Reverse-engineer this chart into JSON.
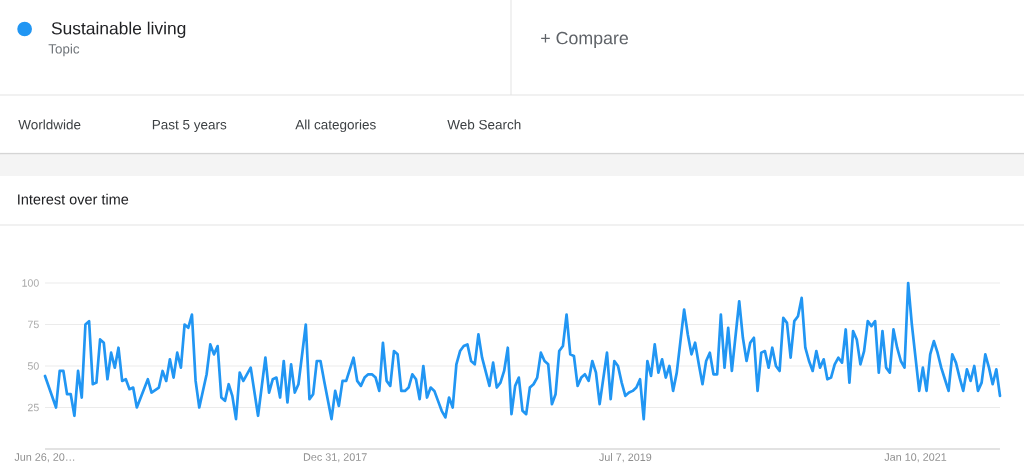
{
  "chart_data": {
    "type": "line",
    "title": "Interest over time",
    "annotations": [
      "Topic",
      "+ Compare",
      "Worldwide",
      "Past 5 years",
      "All categories",
      "Web Search"
    ],
    "x": [
      "2016-06-26",
      "2016-07-17",
      "2016-07-24",
      "2016-07-31",
      "2016-08-07",
      "2016-08-14",
      "2016-08-21",
      "2016-08-28",
      "2016-09-04",
      "2016-09-11",
      "2016-09-18",
      "2016-09-25",
      "2016-10-02",
      "2016-10-09",
      "2016-10-16",
      "2016-10-23",
      "2016-10-30",
      "2016-11-06",
      "2016-11-13",
      "2016-11-20",
      "2016-11-27",
      "2016-12-04",
      "2016-12-11",
      "2016-12-18",
      "2017-01-08",
      "2017-01-15",
      "2017-01-29",
      "2017-02-05",
      "2017-02-12",
      "2017-02-19",
      "2017-02-26",
      "2017-03-05",
      "2017-03-12",
      "2017-03-19",
      "2017-03-26",
      "2017-04-02",
      "2017-04-09",
      "2017-04-16",
      "2017-04-30",
      "2017-05-07",
      "2017-05-14",
      "2017-05-21",
      "2017-05-28",
      "2017-06-04",
      "2017-06-11",
      "2017-06-18",
      "2017-06-25",
      "2017-07-02",
      "2017-07-09",
      "2017-07-23",
      "2017-08-06",
      "2017-08-20",
      "2017-08-27",
      "2017-09-03",
      "2017-09-10",
      "2017-09-17",
      "2017-09-24",
      "2017-10-01",
      "2017-10-08",
      "2017-10-15",
      "2017-10-22",
      "2017-11-05",
      "2017-11-12",
      "2017-11-19",
      "2017-11-26",
      "2017-12-03",
      "2017-12-10",
      "2017-12-24",
      "2017-12-31",
      "2018-01-07",
      "2018-01-14",
      "2018-01-21",
      "2018-02-04",
      "2018-02-11",
      "2018-02-18",
      "2018-02-25",
      "2018-03-04",
      "2018-03-11",
      "2018-03-18",
      "2018-03-25",
      "2018-04-01",
      "2018-04-08",
      "2018-04-15",
      "2018-04-22",
      "2018-04-29",
      "2018-05-06",
      "2018-05-13",
      "2018-05-20",
      "2018-05-27",
      "2018-06-03",
      "2018-06-10",
      "2018-06-17",
      "2018-06-24",
      "2018-07-01",
      "2018-07-08",
      "2018-07-15",
      "2018-07-22",
      "2018-07-29",
      "2018-08-05",
      "2018-08-12",
      "2018-08-19",
      "2018-08-26",
      "2018-09-02",
      "2018-09-09",
      "2018-09-16",
      "2018-09-23",
      "2018-09-30",
      "2018-10-07",
      "2018-10-21",
      "2018-10-28",
      "2018-11-04",
      "2018-11-11",
      "2018-11-18",
      "2018-11-25",
      "2018-12-02",
      "2018-12-09",
      "2018-12-16",
      "2018-12-23",
      "2018-12-30",
      "2019-01-06",
      "2019-01-13",
      "2019-01-20",
      "2019-01-27",
      "2019-02-03",
      "2019-02-10",
      "2019-02-17",
      "2019-02-24",
      "2019-03-03",
      "2019-03-10",
      "2019-03-17",
      "2019-03-24",
      "2019-03-31",
      "2019-04-07",
      "2019-04-14",
      "2019-04-21",
      "2019-04-28",
      "2019-05-05",
      "2019-05-12",
      "2019-05-19",
      "2019-06-02",
      "2019-06-09",
      "2019-06-16",
      "2019-06-23",
      "2019-06-30",
      "2019-07-07",
      "2019-07-14",
      "2019-07-21",
      "2019-07-28",
      "2019-08-04",
      "2019-08-11",
      "2019-08-18",
      "2019-08-25",
      "2019-09-01",
      "2019-09-08",
      "2019-09-15",
      "2019-09-22",
      "2019-09-29",
      "2019-10-06",
      "2019-10-13",
      "2019-10-20",
      "2019-10-27",
      "2019-11-03",
      "2019-11-10",
      "2019-11-17",
      "2019-11-24",
      "2019-12-01",
      "2019-12-08",
      "2019-12-15",
      "2019-12-22",
      "2019-12-29",
      "2020-01-05",
      "2020-01-12",
      "2020-01-19",
      "2020-01-26",
      "2020-02-09",
      "2020-02-16",
      "2020-02-23",
      "2020-03-01",
      "2020-03-08",
      "2020-03-15",
      "2020-03-22",
      "2020-03-29",
      "2020-04-05",
      "2020-04-12",
      "2020-04-19",
      "2020-04-26",
      "2020-05-03",
      "2020-05-10",
      "2020-05-17",
      "2020-05-24",
      "2020-05-31",
      "2020-06-07",
      "2020-06-14",
      "2020-06-21",
      "2020-06-28",
      "2020-07-05",
      "2020-07-12",
      "2020-07-19",
      "2020-07-26",
      "2020-08-02",
      "2020-08-09",
      "2020-08-16",
      "2020-08-23",
      "2020-08-30",
      "2020-09-06",
      "2020-09-13",
      "2020-09-20",
      "2020-09-27",
      "2020-10-04",
      "2020-10-11",
      "2020-10-18",
      "2020-10-25",
      "2020-11-01",
      "2020-11-08",
      "2020-11-15",
      "2020-11-22",
      "2020-11-29",
      "2020-12-06",
      "2020-12-13",
      "2020-12-20",
      "2020-12-27",
      "2021-01-03",
      "2021-01-10",
      "2021-01-17",
      "2021-01-24",
      "2021-01-31",
      "2021-02-07",
      "2021-02-14",
      "2021-02-21",
      "2021-02-28",
      "2021-03-07",
      "2021-03-14",
      "2021-03-21",
      "2021-03-28",
      "2021-04-04",
      "2021-04-11",
      "2021-04-18",
      "2021-04-25",
      "2021-05-02",
      "2021-05-09",
      "2021-05-16",
      "2021-05-23",
      "2021-05-30",
      "2021-06-06",
      "2021-06-13",
      "2021-06-20"
    ],
    "series": [
      {
        "name": "Sustainable living",
        "color": "#2196f3",
        "values": [
          44,
          25,
          47,
          47,
          33,
          33,
          20,
          47,
          31,
          75,
          77,
          39,
          40,
          66,
          64,
          42,
          58,
          49,
          61,
          41,
          42,
          36,
          37,
          25,
          42,
          34,
          37,
          47,
          41,
          54,
          43,
          58,
          49,
          75,
          73,
          81,
          41,
          25,
          45,
          63,
          57,
          62,
          31,
          29,
          39,
          32,
          18,
          46,
          41,
          49,
          20,
          55,
          34,
          42,
          43,
          31,
          53,
          28,
          51,
          34,
          39,
          75,
          30,
          33,
          53,
          53,
          41,
          18,
          35,
          26,
          41,
          41,
          55,
          41,
          38,
          43,
          45,
          45,
          43,
          35,
          64,
          41,
          38,
          59,
          57,
          35,
          35,
          37,
          45,
          42,
          30,
          50,
          31,
          37,
          35,
          29,
          23,
          19,
          31,
          25,
          51,
          59,
          62,
          63,
          53,
          51,
          69,
          55,
          38,
          52,
          37,
          40,
          47,
          61,
          21,
          38,
          43,
          23,
          21,
          37,
          39,
          43,
          58,
          53,
          51,
          27,
          33,
          59,
          62,
          81,
          57,
          56,
          38,
          43,
          45,
          41,
          53,
          46,
          27,
          58,
          30,
          53,
          50,
          40,
          32,
          34,
          35,
          37,
          42,
          18,
          53,
          44,
          63,
          46,
          54,
          43,
          50,
          35,
          46,
          65,
          84,
          69,
          57,
          64,
          51,
          39,
          53,
          58,
          45,
          45,
          81,
          49,
          73,
          47,
          89,
          67,
          53,
          64,
          67,
          35,
          58,
          59,
          49,
          61,
          50,
          47,
          79,
          76,
          55,
          77,
          80,
          91,
          61,
          53,
          47,
          59,
          49,
          54,
          42,
          43,
          51,
          55,
          52,
          72,
          40,
          71,
          66,
          51,
          59,
          77,
          74,
          77,
          46,
          71,
          49,
          46,
          72,
          61,
          53,
          49,
          100,
          75,
          55,
          35,
          49,
          35,
          57,
          65,
          58,
          49,
          42,
          35,
          57,
          52,
          43,
          35,
          48,
          41,
          50,
          35,
          40,
          57,
          49,
          39,
          48,
          32
        ]
      }
    ],
    "xlim": [
      "2016-06-26",
      "2021-06-20"
    ],
    "xticks": [
      {
        "value": "2016-06-26",
        "label": "Jun 26, 20…"
      },
      {
        "value": "2017-12-31",
        "label": "Dec 31, 2017"
      },
      {
        "value": "2019-07-07",
        "label": "Jul 7, 2019"
      },
      {
        "value": "2021-01-10",
        "label": "Jan 10, 2021"
      }
    ],
    "ylim": [
      0,
      100
    ],
    "yticks": [
      25,
      50,
      75,
      100
    ],
    "grid": "y",
    "legend": "top left"
  }
}
